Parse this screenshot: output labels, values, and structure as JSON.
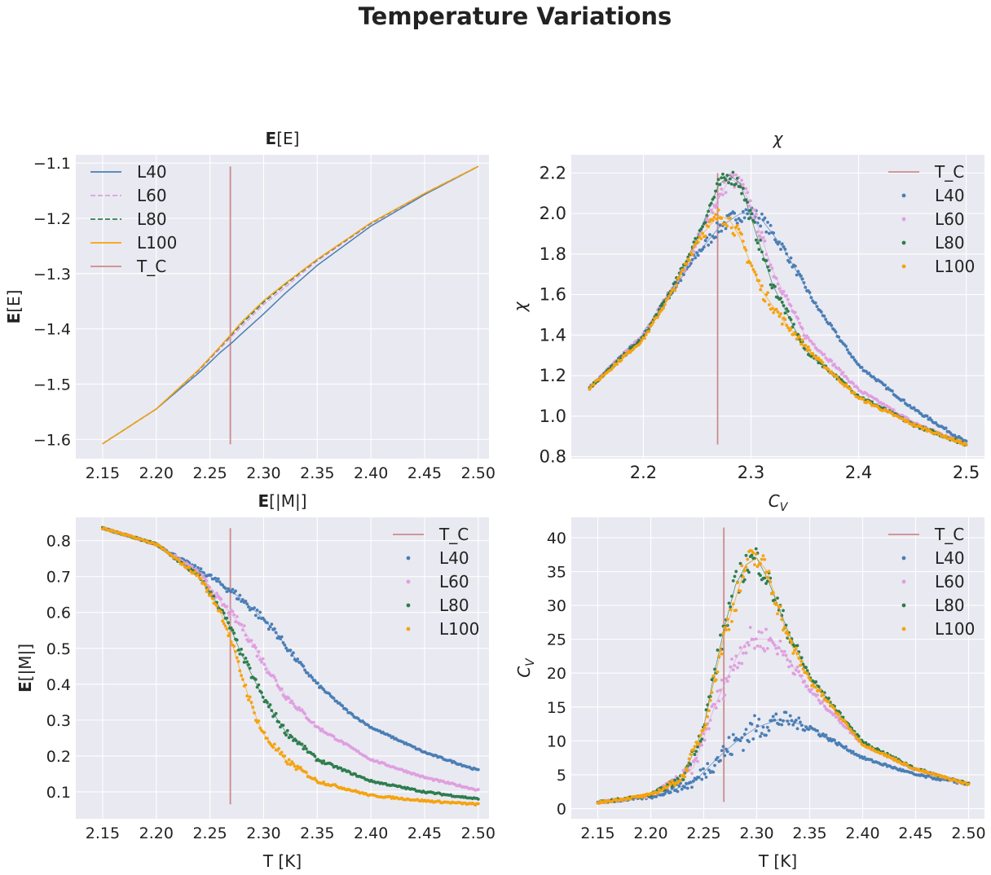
{
  "figure": {
    "suptitle": "Temperature Variations",
    "background": "#ffffff",
    "axes_facecolor": "#e9e9f1",
    "grid_color": "#ffffff",
    "tc_color": "#cc8a8d"
  },
  "series_styles": [
    {
      "name": "L40",
      "color": "#4a7eb5"
    },
    {
      "name": "L60",
      "color": "#df9fdf"
    },
    {
      "name": "L80",
      "color": "#2e7d4e"
    },
    {
      "name": "L100",
      "color": "#f5a30f"
    }
  ],
  "chart_data": [
    {
      "id": "energy",
      "type": "line",
      "title_bold": "E",
      "title_rest": "[E]",
      "ylabel_bold": "E",
      "ylabel_rest": "[E]",
      "xlabel": "",
      "xlim": [
        2.125,
        2.51
      ],
      "ylim": [
        -1.635,
        -1.085
      ],
      "xticks": [
        "2.15",
        "2.20",
        "2.25",
        "2.30",
        "2.35",
        "2.40",
        "2.45",
        "2.50"
      ],
      "yticks": [
        "−1.6",
        "−1.5",
        "−1.4",
        "−1.3",
        "−1.2",
        "−1.1"
      ],
      "grid": true,
      "legend_placement": "upper-left",
      "legend": [
        "L40",
        "L60",
        "L80",
        "L100",
        "T_C"
      ],
      "t_c": {
        "label": "T_C",
        "x": 2.269,
        "y_from": -1.609,
        "y_to": -1.106
      },
      "series": [
        {
          "name": "L40",
          "x": [
            2.15,
            2.2,
            2.24,
            2.26,
            2.27,
            2.28,
            2.3,
            2.32,
            2.35,
            2.4,
            2.45,
            2.5
          ],
          "y": [
            -1.608,
            -1.545,
            -1.479,
            -1.442,
            -1.426,
            -1.408,
            -1.373,
            -1.336,
            -1.285,
            -1.214,
            -1.157,
            -1.106
          ]
        },
        {
          "name": "L60",
          "x": [
            2.15,
            2.2,
            2.24,
            2.26,
            2.27,
            2.28,
            2.3,
            2.32,
            2.35,
            2.4,
            2.45,
            2.5
          ],
          "y": [
            -1.608,
            -1.545,
            -1.475,
            -1.435,
            -1.414,
            -1.395,
            -1.356,
            -1.325,
            -1.277,
            -1.21,
            -1.155,
            -1.106
          ]
        },
        {
          "name": "L80",
          "x": [
            2.15,
            2.2,
            2.24,
            2.26,
            2.27,
            2.28,
            2.3,
            2.32,
            2.35,
            2.4,
            2.45,
            2.5
          ],
          "y": [
            -1.608,
            -1.545,
            -1.474,
            -1.432,
            -1.411,
            -1.39,
            -1.352,
            -1.32,
            -1.275,
            -1.209,
            -1.155,
            -1.106
          ]
        },
        {
          "name": "L100",
          "x": [
            2.15,
            2.2,
            2.24,
            2.26,
            2.27,
            2.28,
            2.3,
            2.32,
            2.35,
            2.4,
            2.45,
            2.5
          ],
          "y": [
            -1.608,
            -1.545,
            -1.473,
            -1.431,
            -1.409,
            -1.387,
            -1.349,
            -1.318,
            -1.274,
            -1.208,
            -1.155,
            -1.106
          ]
        }
      ]
    },
    {
      "id": "susceptibility",
      "type": "scatter",
      "title": "χ",
      "ylabel": "χ",
      "xlabel": "",
      "xlim": [
        2.133,
        2.517
      ],
      "ylim": [
        0.79,
        2.29
      ],
      "xticks": [
        "2.2",
        "2.3",
        "2.4",
        "2.5"
      ],
      "yticks": [
        "0.8",
        "1.0",
        "1.2",
        "1.4",
        "1.6",
        "1.8",
        "2.0",
        "2.2"
      ],
      "grid": true,
      "legend_placement": "upper-right",
      "legend": [
        "T_C",
        "L40",
        "L60",
        "L80",
        "L100"
      ],
      "t_c": {
        "label": "T_C",
        "x": 2.269,
        "y_from": 0.86,
        "y_to": 2.2
      },
      "series": [
        {
          "name": "L40",
          "x": [
            2.15,
            2.2,
            2.25,
            2.27,
            2.29,
            2.3,
            2.31,
            2.33,
            2.36,
            2.4,
            2.45,
            2.5
          ],
          "y": [
            1.14,
            1.4,
            1.8,
            1.93,
            2.0,
            2.0,
            1.97,
            1.83,
            1.55,
            1.25,
            1.04,
            0.87
          ]
        },
        {
          "name": "L60",
          "x": [
            2.15,
            2.2,
            2.24,
            2.26,
            2.28,
            2.29,
            2.3,
            2.32,
            2.35,
            2.4,
            2.45,
            2.5
          ],
          "y": [
            1.14,
            1.4,
            1.75,
            1.98,
            2.17,
            2.15,
            2.04,
            1.72,
            1.4,
            1.13,
            0.97,
            0.86
          ]
        },
        {
          "name": "L80",
          "x": [
            2.15,
            2.2,
            2.23,
            2.25,
            2.27,
            2.28,
            2.29,
            2.3,
            2.32,
            2.35,
            2.4,
            2.45,
            2.5
          ],
          "y": [
            1.14,
            1.39,
            1.66,
            1.88,
            2.14,
            2.19,
            2.15,
            1.98,
            1.65,
            1.33,
            1.1,
            0.96,
            0.86
          ]
        },
        {
          "name": "L100",
          "x": [
            2.15,
            2.2,
            2.23,
            2.25,
            2.27,
            2.28,
            2.29,
            2.3,
            2.31,
            2.33,
            2.36,
            2.4,
            2.45,
            2.5
          ],
          "y": [
            1.14,
            1.38,
            1.64,
            1.87,
            1.99,
            1.97,
            1.88,
            1.75,
            1.62,
            1.47,
            1.29,
            1.09,
            0.96,
            0.86
          ]
        }
      ]
    },
    {
      "id": "magnetization",
      "type": "scatter",
      "title_bold": "E",
      "title_rest": "[|M|]",
      "ylabel_bold": "E",
      "ylabel_rest": "[|M|]",
      "xlabel": "T [K]",
      "xlim": [
        2.125,
        2.51
      ],
      "ylim": [
        0.025,
        0.865
      ],
      "xticks": [
        "2.15",
        "2.20",
        "2.25",
        "2.30",
        "2.35",
        "2.40",
        "2.45",
        "2.50"
      ],
      "yticks": [
        "0.1",
        "0.2",
        "0.3",
        "0.4",
        "0.5",
        "0.6",
        "0.7",
        "0.8"
      ],
      "grid": true,
      "legend_placement": "upper-right",
      "legend": [
        "T_C",
        "L40",
        "L60",
        "L80",
        "L100"
      ],
      "t_c": {
        "label": "T_C",
        "x": 2.269,
        "y_from": 0.065,
        "y_to": 0.835
      },
      "series": [
        {
          "name": "L40",
          "x": [
            2.15,
            2.2,
            2.25,
            2.27,
            2.29,
            2.31,
            2.33,
            2.35,
            2.38,
            2.4,
            2.45,
            2.5
          ],
          "y": [
            0.835,
            0.79,
            0.7,
            0.66,
            0.61,
            0.55,
            0.47,
            0.4,
            0.32,
            0.28,
            0.21,
            0.16
          ]
        },
        {
          "name": "L60",
          "x": [
            2.15,
            2.2,
            2.24,
            2.26,
            2.28,
            2.3,
            2.32,
            2.35,
            2.4,
            2.45,
            2.5
          ],
          "y": [
            0.835,
            0.79,
            0.71,
            0.63,
            0.56,
            0.46,
            0.37,
            0.28,
            0.19,
            0.14,
            0.105
          ]
        },
        {
          "name": "L80",
          "x": [
            2.15,
            2.2,
            2.24,
            2.26,
            2.27,
            2.28,
            2.3,
            2.32,
            2.35,
            2.4,
            2.45,
            2.5
          ],
          "y": [
            0.835,
            0.79,
            0.7,
            0.61,
            0.55,
            0.48,
            0.36,
            0.27,
            0.19,
            0.13,
            0.1,
            0.08
          ]
        },
        {
          "name": "L100",
          "x": [
            2.15,
            2.2,
            2.24,
            2.26,
            2.27,
            2.28,
            2.29,
            2.3,
            2.32,
            2.35,
            2.4,
            2.45,
            2.5
          ],
          "y": [
            0.835,
            0.79,
            0.7,
            0.6,
            0.52,
            0.42,
            0.33,
            0.26,
            0.19,
            0.13,
            0.09,
            0.075,
            0.065
          ]
        }
      ]
    },
    {
      "id": "heat-capacity",
      "type": "scatter",
      "title": "C_V",
      "ylabel": "C_V",
      "xlabel": "T [K]",
      "xlim": [
        2.125,
        2.515
      ],
      "ylim": [
        -1.5,
        43.0
      ],
      "xticks": [
        "2.15",
        "2.20",
        "2.25",
        "2.30",
        "2.35",
        "2.40",
        "2.45",
        "2.50"
      ],
      "yticks": [
        "0",
        "5",
        "10",
        "15",
        "20",
        "25",
        "30",
        "35",
        "40"
      ],
      "grid": true,
      "legend_placement": "upper-right",
      "legend": [
        "T_C",
        "L40",
        "L60",
        "L80",
        "L100"
      ],
      "t_c": {
        "label": "T_C",
        "x": 2.269,
        "y_from": 1.0,
        "y_to": 41.5
      },
      "series": [
        {
          "name": "L40",
          "x": [
            2.15,
            2.2,
            2.24,
            2.26,
            2.28,
            2.3,
            2.32,
            2.33,
            2.35,
            2.4,
            2.45,
            2.5
          ],
          "y": [
            0.9,
            1.7,
            3.8,
            7.0,
            9.8,
            12.0,
            13.1,
            13.0,
            12.0,
            7.5,
            5.0,
            3.6
          ]
        },
        {
          "name": "L60",
          "x": [
            2.15,
            2.2,
            2.24,
            2.26,
            2.28,
            2.29,
            2.3,
            2.31,
            2.32,
            2.33,
            2.35,
            2.4,
            2.45,
            2.5
          ],
          "y": [
            0.9,
            1.9,
            6.0,
            15.0,
            22.0,
            24.5,
            25.0,
            25.0,
            24.0,
            22.0,
            17.5,
            9.5,
            5.8,
            3.6
          ]
        },
        {
          "name": "L80",
          "x": [
            2.15,
            2.2,
            2.23,
            2.25,
            2.26,
            2.27,
            2.28,
            2.29,
            2.3,
            2.31,
            2.32,
            2.33,
            2.35,
            2.4,
            2.45,
            2.5
          ],
          "y": [
            0.9,
            2.0,
            4.5,
            12.0,
            20.0,
            27.0,
            33.0,
            36.0,
            37.0,
            34.0,
            30.0,
            26.0,
            19.5,
            9.8,
            5.9,
            3.6
          ]
        },
        {
          "name": "L100",
          "x": [
            2.15,
            2.2,
            2.23,
            2.25,
            2.26,
            2.27,
            2.28,
            2.29,
            2.3,
            2.31,
            2.32,
            2.33,
            2.35,
            2.4,
            2.45,
            2.5
          ],
          "y": [
            0.9,
            2.0,
            4.5,
            12.0,
            19.0,
            26.0,
            31.0,
            36.0,
            37.0,
            35.0,
            30.0,
            25.0,
            19.0,
            9.5,
            5.8,
            3.6
          ]
        }
      ]
    }
  ]
}
